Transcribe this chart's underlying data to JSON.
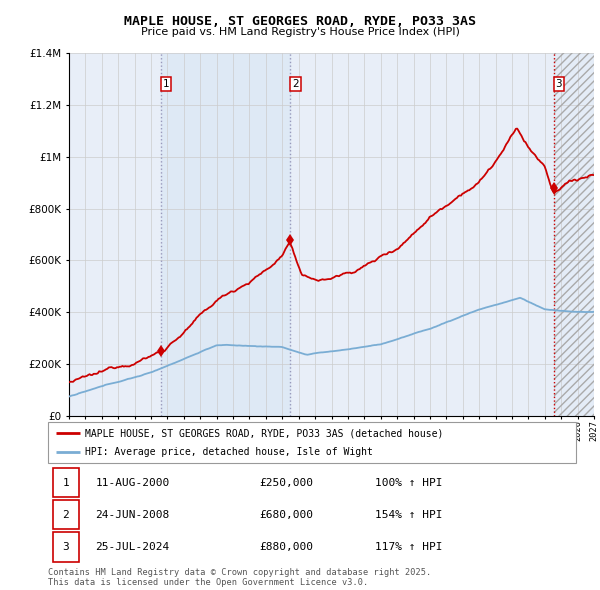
{
  "title": "MAPLE HOUSE, ST GEORGES ROAD, RYDE, PO33 3AS",
  "subtitle": "Price paid vs. HM Land Registry's House Price Index (HPI)",
  "legend_line1": "MAPLE HOUSE, ST GEORGES ROAD, RYDE, PO33 3AS (detached house)",
  "legend_line2": "HPI: Average price, detached house, Isle of Wight",
  "transactions": [
    {
      "num": 1,
      "date": "11-AUG-2000",
      "year": 2000.61,
      "price": 250000,
      "hpi_pct": "100%"
    },
    {
      "num": 2,
      "date": "24-JUN-2008",
      "year": 2008.48,
      "price": 680000,
      "hpi_pct": "154%"
    },
    {
      "num": 3,
      "date": "25-JUL-2024",
      "year": 2024.56,
      "price": 880000,
      "hpi_pct": "117%"
    }
  ],
  "footer": "Contains HM Land Registry data © Crown copyright and database right 2025.\nThis data is licensed under the Open Government Licence v3.0.",
  "xmin": 1995,
  "xmax": 2027,
  "ymin": 0,
  "ymax": 1400000,
  "yticks": [
    0,
    200000,
    400000,
    600000,
    800000,
    1000000,
    1200000,
    1400000
  ],
  "ytick_labels": [
    "£0",
    "£200K",
    "£400K",
    "£600K",
    "£800K",
    "£1M",
    "£1.2M",
    "£1.4M"
  ],
  "red_color": "#cc0000",
  "blue_color": "#7aadd4",
  "bg_color": "#e8eef8",
  "grid_color": "#cccccc",
  "span_color": "#dce8f5",
  "hatch_color": "#cccccc",
  "vline1_color": "#9999bb",
  "vline2_color": "#cc0000",
  "region1_x1": 2000.61,
  "region1_x2": 2008.48,
  "region2_x1": 2024.56,
  "region2_x2": 2027
}
